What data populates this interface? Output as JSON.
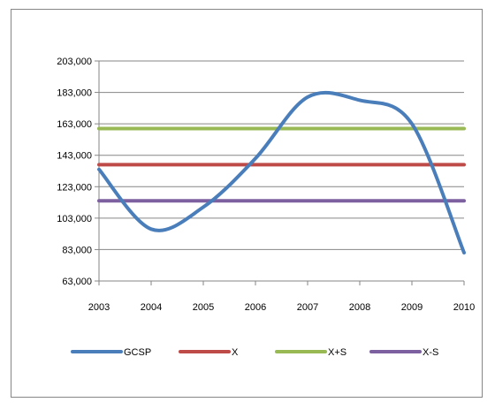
{
  "chart_data": {
    "type": "line",
    "title": "",
    "xlabel": "",
    "ylabel": "",
    "x": [
      "2003",
      "2004",
      "2005",
      "2006",
      "2007",
      "2008",
      "2009",
      "2010"
    ],
    "y_ticks": [
      "63,000",
      "83,000",
      "103,000",
      "123,000",
      "143,000",
      "163,000",
      "183,000",
      "203,000"
    ],
    "ylim": [
      63000,
      203000
    ],
    "grid": true,
    "legend_position": "bottom",
    "series": [
      {
        "name": "GCSP",
        "color": "#4a7ebb",
        "smooth": true,
        "values": [
          134000,
          96000,
          110000,
          141000,
          180000,
          178000,
          163000,
          81000
        ]
      },
      {
        "name": "X",
        "color": "#be4b48",
        "values": [
          137000,
          137000,
          137000,
          137000,
          137000,
          137000,
          137000,
          137000
        ]
      },
      {
        "name": "X+S",
        "color": "#98b954",
        "values": [
          160000,
          160000,
          160000,
          160000,
          160000,
          160000,
          160000,
          160000
        ]
      },
      {
        "name": "X-S",
        "color": "#7d60a0",
        "values": [
          114000,
          114000,
          114000,
          114000,
          114000,
          114000,
          114000,
          114000
        ]
      }
    ]
  }
}
